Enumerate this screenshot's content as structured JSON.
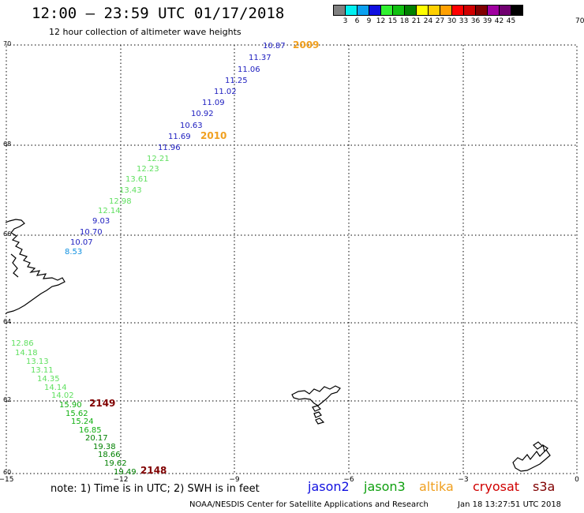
{
  "header": {
    "title": "12:00 — 23:59 UTC 01/17/2018",
    "subtitle": "12 hour collection of altimeter wave heights"
  },
  "legend": {
    "unit": "70 (ft)",
    "colors": [
      "#808080",
      "#00f0f0",
      "#0aa0f0",
      "#1010e0",
      "#30f030",
      "#10c010",
      "#008000",
      "#ffff00",
      "#ffd000",
      "#ffa000",
      "#ff0000",
      "#d00000",
      "#800000",
      "#a000a0",
      "#700070",
      "#000000"
    ],
    "labels": [
      "3",
      "6",
      "9",
      "12",
      "15",
      "18",
      "21",
      "24",
      "27",
      "30",
      "33",
      "36",
      "39",
      "42",
      "45"
    ]
  },
  "map": {
    "lon_range": [
      -15,
      0
    ],
    "lat_range": [
      60,
      70
    ],
    "lon_ticks": [
      "−15",
      "−12",
      "−9",
      "−6",
      "−3",
      "0"
    ],
    "lat_ticks": [
      "70",
      "68",
      "66",
      "64",
      "62",
      "60"
    ]
  },
  "track_labels": [
    {
      "text": "2009",
      "color": "#f0a020"
    },
    {
      "text": "2010",
      "color": "#f0a020"
    },
    {
      "text": "2149",
      "color": "#800000"
    },
    {
      "text": "2148",
      "color": "#800000"
    }
  ],
  "observations": [
    {
      "text": "10.87",
      "color": "#2020c0"
    },
    {
      "text": "11.37",
      "color": "#2020c0"
    },
    {
      "text": "11.06",
      "color": "#2020c0"
    },
    {
      "text": "11.25",
      "color": "#2020c0"
    },
    {
      "text": "11.02",
      "color": "#2020c0"
    },
    {
      "text": "11.09",
      "color": "#2020c0"
    },
    {
      "text": "10.92",
      "color": "#2020c0"
    },
    {
      "text": "10.63",
      "color": "#2020c0"
    },
    {
      "text": "11.69",
      "color": "#2020c0"
    },
    {
      "text": "11.96",
      "color": "#2020c0"
    },
    {
      "text": "12.21",
      "color": "#60e060"
    },
    {
      "text": "12.23",
      "color": "#60e060"
    },
    {
      "text": "13.61",
      "color": "#60e060"
    },
    {
      "text": "13.43",
      "color": "#60e060"
    },
    {
      "text": "12.98",
      "color": "#60e060"
    },
    {
      "text": "12.14",
      "color": "#60e060"
    },
    {
      "text": "9.03",
      "color": "#2020c0"
    },
    {
      "text": "10.70",
      "color": "#2020c0"
    },
    {
      "text": "10.07",
      "color": "#2020c0"
    },
    {
      "text": "8.53",
      "color": "#1090e0"
    },
    {
      "text": "12.86",
      "color": "#60e060"
    },
    {
      "text": "14.18",
      "color": "#60e060"
    },
    {
      "text": "13.13",
      "color": "#60e060"
    },
    {
      "text": "13.11",
      "color": "#60e060"
    },
    {
      "text": "14.35",
      "color": "#60e060"
    },
    {
      "text": "14.14",
      "color": "#60e060"
    },
    {
      "text": "14.02",
      "color": "#60e060"
    },
    {
      "text": "15.90",
      "color": "#10b010"
    },
    {
      "text": "15.62",
      "color": "#10b010"
    },
    {
      "text": "15.24",
      "color": "#10b010"
    },
    {
      "text": "16.85",
      "color": "#10b010"
    },
    {
      "text": "20.17",
      "color": "#008000"
    },
    {
      "text": "19.38",
      "color": "#008000"
    },
    {
      "text": "18.66",
      "color": "#008000"
    },
    {
      "text": "19.62",
      "color": "#008000"
    },
    {
      "text": "19.49",
      "color": "#008000"
    }
  ],
  "footer": {
    "note": "note:  1) Time is in UTC;  2) SWH is in feet",
    "satellites": [
      {
        "name": "jason2",
        "color": "#1010e0"
      },
      {
        "name": "jason3",
        "color": "#10a010"
      },
      {
        "name": "altika",
        "color": "#f0a020"
      },
      {
        "name": "cryosat",
        "color": "#d00000"
      },
      {
        "name": "s3a",
        "color": "#800000"
      }
    ],
    "credit": "NOAA/NESDIS Center for Satellite Applications and Research",
    "timestamp": "Jan 18 13:27:51 UTC 2018"
  }
}
